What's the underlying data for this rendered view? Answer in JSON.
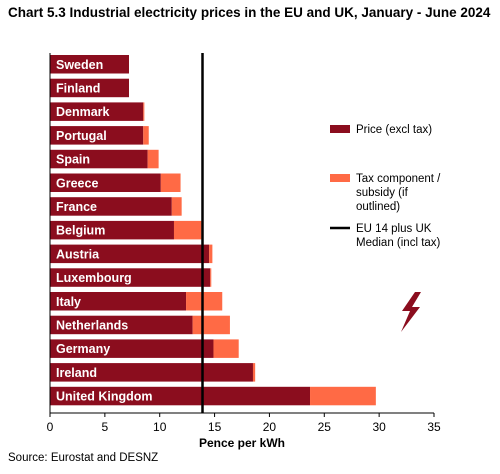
{
  "title": "Chart 5.3 Industrial electricity prices in the EU and UK, January - June 2024",
  "source": "Source: Eurostat and DESNZ",
  "colors": {
    "price": "#8b0d1e",
    "tax": "#ff6a45",
    "median": "#000000",
    "label": "#ffffff",
    "bolt": "#8b0d1e"
  },
  "icons": {
    "decoration": "lightning-bolt-icon"
  },
  "chart_data": {
    "type": "bar",
    "orientation": "horizontal",
    "stacked": true,
    "title": "Chart 5.3 Industrial electricity prices in the EU and UK, January - June 2024",
    "xlabel": "Pence per kWh",
    "ylabel": "",
    "xlim": [
      0,
      35
    ],
    "xticks": [
      0,
      5,
      10,
      15,
      20,
      25,
      30,
      35
    ],
    "grid": false,
    "legend_position": "right",
    "categories": [
      "Sweden",
      "Finland",
      "Denmark",
      "Portugal",
      "Spain",
      "Greece",
      "France",
      "Belgium",
      "Austria",
      "Luxembourg",
      "Italy",
      "Netherlands",
      "Germany",
      "Ireland",
      "United Kingdom"
    ],
    "series": [
      {
        "name": "Price (excl tax)",
        "values": [
          7.2,
          7.2,
          8.5,
          8.5,
          8.9,
          10.1,
          11.1,
          11.3,
          14.5,
          14.6,
          12.4,
          13.0,
          14.9,
          18.5,
          23.7
        ]
      },
      {
        "name": "Tax component / subsidy (if outlined)",
        "values": [
          0.0,
          0.0,
          0.1,
          0.5,
          1.0,
          1.8,
          0.9,
          2.5,
          0.3,
          0.1,
          3.3,
          3.4,
          2.3,
          0.2,
          6.0
        ]
      }
    ],
    "reference_lines": [
      {
        "name": "EU 14 plus UK Median (incl tax)",
        "value": 13.9
      }
    ],
    "legend": [
      {
        "label": "Price (excl tax)",
        "kind": "bar",
        "color": "#8b0d1e"
      },
      {
        "label": "Tax component / subsidy (if outlined)",
        "kind": "bar",
        "color": "#ff6a45"
      },
      {
        "label": "EU 14 plus UK Median (incl tax)",
        "kind": "line",
        "color": "#000000"
      }
    ]
  }
}
